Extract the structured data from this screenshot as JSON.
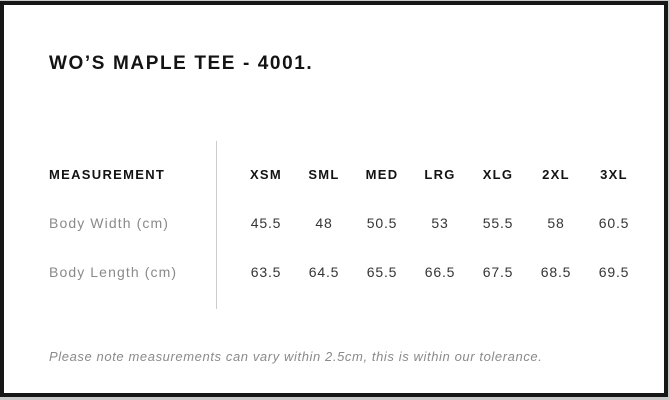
{
  "page": {
    "title": "WO’S MAPLE TEE - 4001.",
    "note": "Please note measurements can vary within 2.5cm, this is within our tolerance."
  },
  "size_chart": {
    "measurement_header": "MEASUREMENT",
    "sizes": [
      "XSM",
      "SML",
      "MED",
      "LRG",
      "XLG",
      "2XL",
      "3XL"
    ],
    "rows": [
      {
        "label": "Body Width (cm)",
        "values": [
          "45.5",
          "48",
          "50.5",
          "53",
          "55.5",
          "58",
          "60.5"
        ]
      },
      {
        "label": "Body Length (cm)",
        "values": [
          "63.5",
          "64.5",
          "65.5",
          "66.5",
          "67.5",
          "68.5",
          "69.5"
        ]
      }
    ]
  },
  "colors": {
    "panel_background": "#ffffff",
    "panel_border": "#161616",
    "heading_text": "#131313",
    "label_text": "#8a8a8a",
    "value_text": "#353535",
    "divider": "#cccccc"
  }
}
